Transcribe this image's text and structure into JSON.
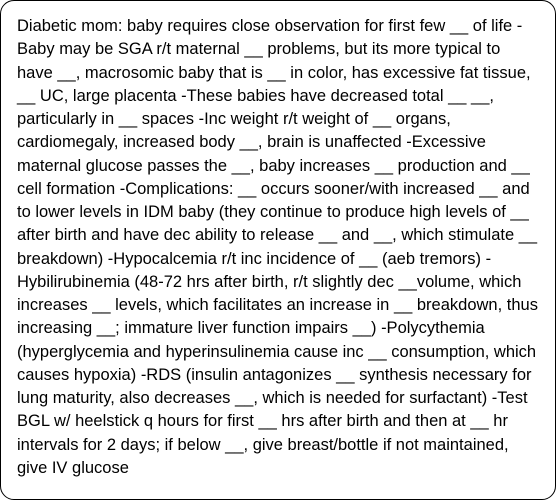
{
  "card": {
    "text": "Diabetic mom: baby requires close observation for first few __ of life -Baby may be SGA r/t maternal __ problems, but its more typical to have __, macrosomic baby that is __ in color, has excessive fat tissue, __ UC, large placenta -These babies have decreased total __ __, particularly in __ spaces -Inc weight r/t weight of __ organs, cardiomegaly, increased body __, brain is unaffected -Excessive maternal glucose passes the __, baby increases __ production and __ cell formation -Complications: __ occurs sooner/with increased __ and to lower levels in IDM baby (they continue to produce high levels of __ after birth and have dec ability to release __ and __, which stimulate __ breakdown) -Hypocalcemia r/t inc incidence of __ (aeb tremors) -Hybilirubinemia (48-72 hrs after birth, r/t slightly dec __volume, which increases __ levels, which facilitates an increase in __ breakdown, thus increasing __; immature liver function impairs __) -Polycythemia (hyperglycemia and hyperinsulinemia cause inc __ consumption, which causes hypoxia) -RDS (insulin antagonizes __ synthesis necessary for lung maturity, also decreases __, which is needed for surfactant) -Test BGL w/ heelstick q hours for first __ hrs after birth and then at __ hr intervals for 2 days; if below __, give breast/bottle if not maintained, give IV glucose",
    "background_color": "#ffffff",
    "border_color": "#000000",
    "border_radius": 14,
    "text_color": "#000000",
    "font_size": 16.5,
    "line_height": 1.41
  }
}
